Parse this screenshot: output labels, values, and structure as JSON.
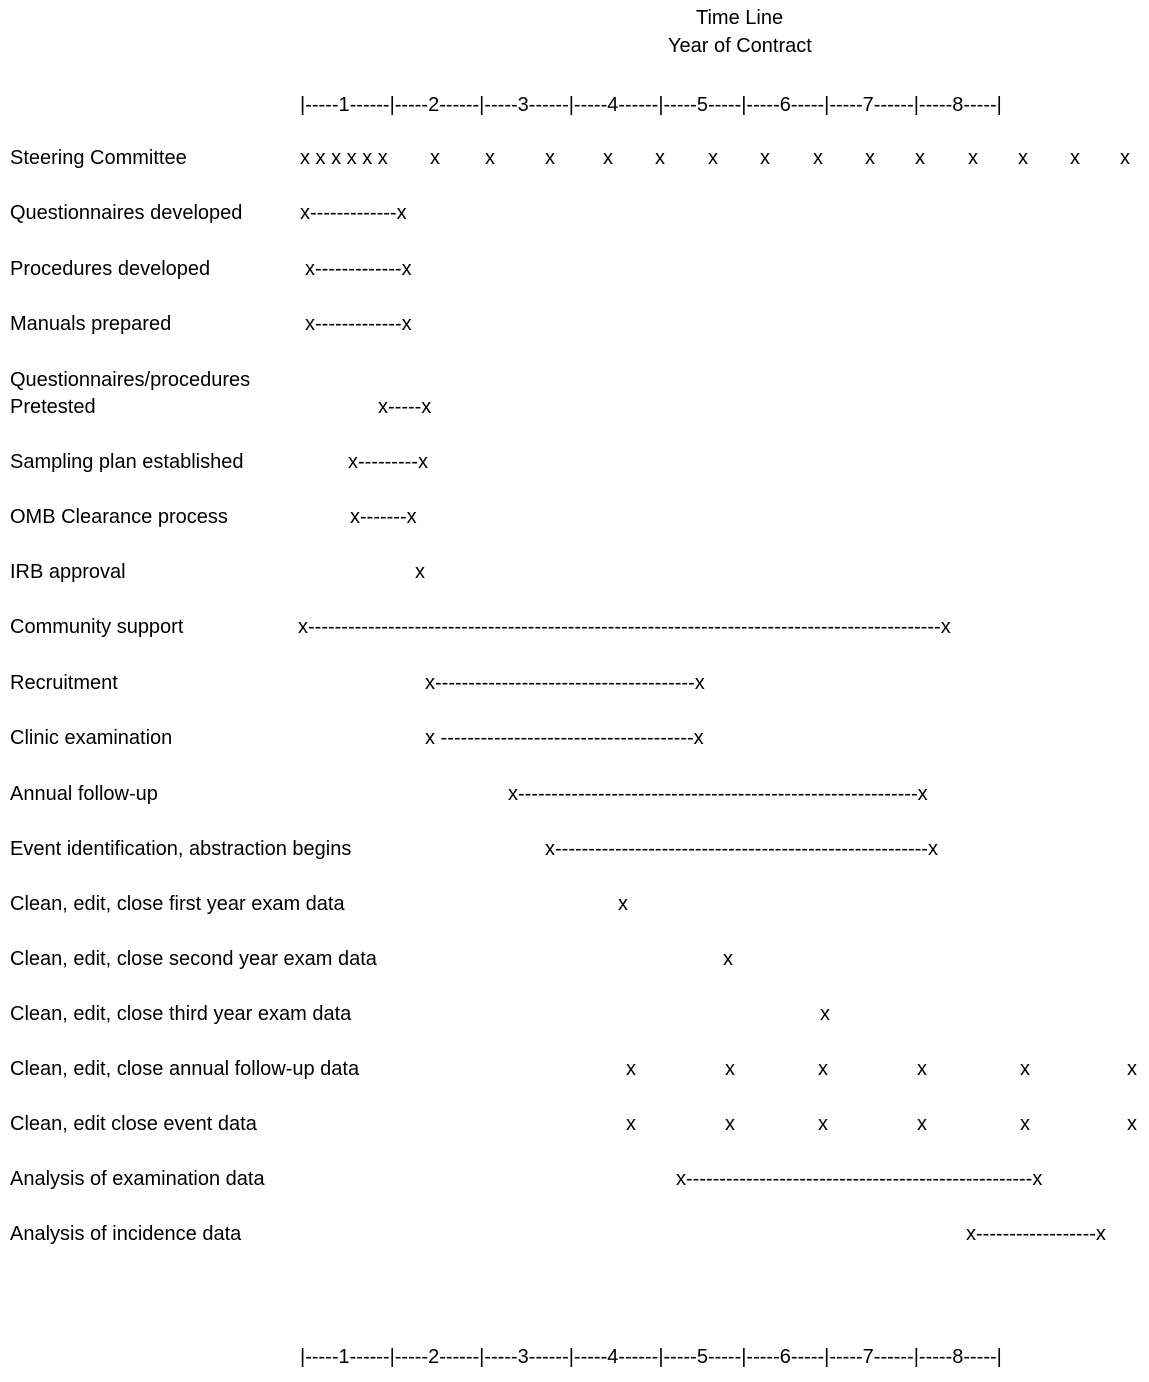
{
  "header": {
    "title_line1": "Time Line",
    "title_line2": "Year of Contract"
  },
  "scale": {
    "top": "|-----1------|-----2------|-----3------|-----4------|-----5-----|-----6-----|-----7------|-----8-----|",
    "bottom": "|-----1------|-----2------|-----3------|-----4------|-----5-----|-----6-----|-----7------|-----8-----|"
  },
  "rows": [
    {
      "label": "Steering Committee",
      "marks": [
        {
          "text": "x x x x x x"
        },
        {
          "text": "x"
        },
        {
          "text": "x"
        },
        {
          "text": "x"
        },
        {
          "text": "x"
        },
        {
          "text": "x"
        },
        {
          "text": "x"
        },
        {
          "text": "x"
        },
        {
          "text": "x"
        },
        {
          "text": "x"
        },
        {
          "text": "x"
        },
        {
          "text": "x"
        },
        {
          "text": "x"
        },
        {
          "text": "x"
        },
        {
          "text": "x"
        }
      ]
    },
    {
      "label": "Questionnaires developed",
      "marks": [
        {
          "text": "x-------------x"
        }
      ]
    },
    {
      "label": "Procedures developed",
      "marks": [
        {
          "text": "x-------------x"
        }
      ]
    },
    {
      "label": "Manuals prepared",
      "marks": [
        {
          "text": "x-------------x"
        }
      ]
    },
    {
      "label": "Questionnaires/procedures",
      "label2": "Pretested",
      "marks": [
        {
          "text": "x-----x"
        }
      ]
    },
    {
      "label": "Sampling plan established",
      "marks": [
        {
          "text": "x---------x"
        }
      ]
    },
    {
      "label": "OMB Clearance process",
      "marks": [
        {
          "text": "x-------x"
        }
      ]
    },
    {
      "label": "IRB approval",
      "marks": [
        {
          "text": "x"
        }
      ]
    },
    {
      "label": "Community support",
      "marks": [
        {
          "text": "x-----------------------------------------------------------------------------------------------x"
        }
      ]
    },
    {
      "label": "Recruitment",
      "marks": [
        {
          "text": "x---------------------------------------x"
        }
      ]
    },
    {
      "label": "Clinic examination",
      "marks": [
        {
          "text": "x --------------------------------------x"
        }
      ]
    },
    {
      "label": "Annual follow-up",
      "marks": [
        {
          "text": "x------------------------------------------------------------x"
        }
      ]
    },
    {
      "label": "Event identification, abstraction begins",
      "marks": [
        {
          "text": "x--------------------------------------------------------x"
        }
      ]
    },
    {
      "label": "Clean, edit, close first year exam data",
      "marks": [
        {
          "text": "x"
        }
      ]
    },
    {
      "label": "Clean, edit, close second year exam data",
      "marks": [
        {
          "text": "x"
        }
      ]
    },
    {
      "label": "Clean, edit, close third year exam data",
      "marks": [
        {
          "text": "x"
        }
      ]
    },
    {
      "label": "Clean, edit, close annual follow-up data",
      "marks": [
        {
          "text": "x"
        },
        {
          "text": "x"
        },
        {
          "text": "x"
        },
        {
          "text": "x"
        },
        {
          "text": "x"
        },
        {
          "text": "x"
        }
      ]
    },
    {
      "label": "Clean, edit close event data",
      "marks": [
        {
          "text": "x"
        },
        {
          "text": "x"
        },
        {
          "text": "x"
        },
        {
          "text": "x"
        },
        {
          "text": "x"
        },
        {
          "text": "x"
        }
      ]
    },
    {
      "label": "Analysis of examination data",
      "marks": [
        {
          "text": "x----------------------------------------------------x"
        }
      ]
    },
    {
      "label": "Analysis of incidence data",
      "marks": [
        {
          "text": "x------------------x"
        }
      ]
    }
  ]
}
